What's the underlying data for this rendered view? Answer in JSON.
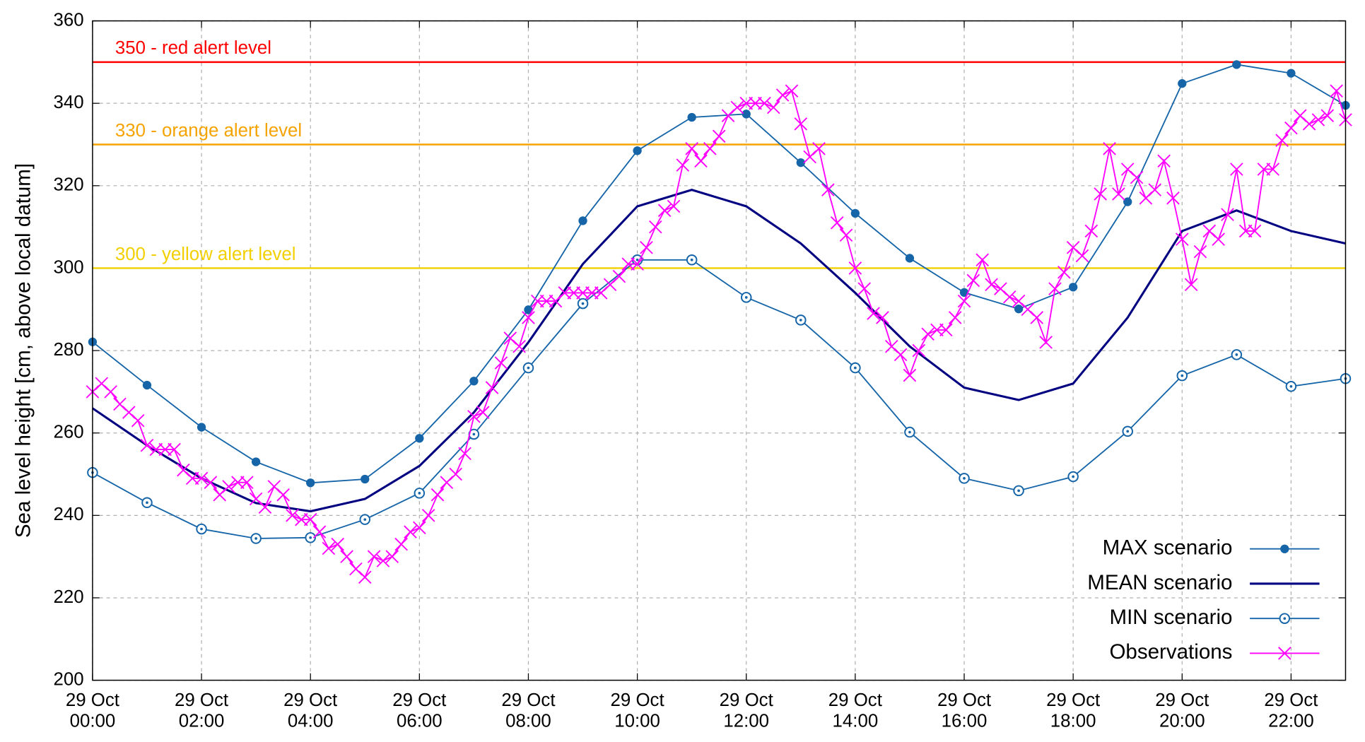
{
  "chart_data": {
    "type": "line",
    "ylabel": "Sea level height [cm, above local datum]",
    "xlim": [
      0,
      1380
    ],
    "ylim": [
      200,
      360
    ],
    "yticks": [
      200,
      220,
      240,
      260,
      280,
      300,
      320,
      340,
      360
    ],
    "xticks": [
      {
        "value": 0,
        "label": [
          "29 Oct",
          "00:00"
        ]
      },
      {
        "value": 120,
        "label": [
          "29 Oct",
          "02:00"
        ]
      },
      {
        "value": 240,
        "label": [
          "29 Oct",
          "04:00"
        ]
      },
      {
        "value": 360,
        "label": [
          "29 Oct",
          "06:00"
        ]
      },
      {
        "value": 480,
        "label": [
          "29 Oct",
          "08:00"
        ]
      },
      {
        "value": 600,
        "label": [
          "29 Oct",
          "10:00"
        ]
      },
      {
        "value": 720,
        "label": [
          "29 Oct",
          "12:00"
        ]
      },
      {
        "value": 840,
        "label": [
          "29 Oct",
          "14:00"
        ]
      },
      {
        "value": 960,
        "label": [
          "29 Oct",
          "16:00"
        ]
      },
      {
        "value": 1080,
        "label": [
          "29 Oct",
          "18:00"
        ]
      },
      {
        "value": 1200,
        "label": [
          "29 Oct",
          "20:00"
        ]
      },
      {
        "value": 1320,
        "label": [
          "29 Oct",
          "22:00"
        ]
      }
    ],
    "grid": true,
    "legend": "lower right",
    "thresholds": [
      {
        "value": 350,
        "label": "350 -  red alert level",
        "color": "#ff0000"
      },
      {
        "value": 330,
        "label": "330 - orange alert level",
        "color": "#f5a300"
      },
      {
        "value": 300,
        "label": "300 - yellow alert level",
        "color": "#f2d000"
      }
    ],
    "series": [
      {
        "name": "MAX scenario",
        "color": "#1565a8",
        "marker": "dot",
        "x": [
          0,
          60,
          120,
          180,
          240,
          300,
          360,
          420,
          480,
          540,
          600,
          660,
          720,
          780,
          840,
          900,
          960,
          1020,
          1080,
          1140,
          1200,
          1260,
          1320,
          1380
        ],
        "values": [
          282.1,
          271.6,
          261.4,
          253.0,
          247.9,
          248.8,
          258.7,
          272.6,
          289.9,
          311.5,
          328.5,
          336.6,
          337.4,
          325.6,
          313.3,
          302.4,
          294.1,
          290.1,
          295.4,
          316.1,
          344.8,
          349.4,
          347.3,
          339.5
        ]
      },
      {
        "name": "MEAN scenario",
        "color": "#000080",
        "marker": "none",
        "x": [
          0,
          60,
          120,
          180,
          240,
          300,
          360,
          420,
          480,
          540,
          600,
          660,
          720,
          780,
          840,
          900,
          960,
          1020,
          1080,
          1140,
          1200,
          1260,
          1320,
          1380
        ],
        "values": [
          266,
          257,
          249,
          243,
          241,
          244,
          252,
          265,
          282,
          301,
          315,
          319,
          315,
          306,
          294,
          281,
          271,
          268,
          272,
          288,
          309,
          314,
          309,
          306
        ]
      },
      {
        "name": "MIN scenario",
        "color": "#1565a8",
        "marker": "circle",
        "x": [
          0,
          60,
          120,
          180,
          240,
          300,
          360,
          420,
          480,
          540,
          600,
          660,
          720,
          780,
          840,
          900,
          960,
          1020,
          1080,
          1140,
          1200,
          1260,
          1320,
          1380
        ],
        "values": [
          250.4,
          243.1,
          236.7,
          234.4,
          234.6,
          239.0,
          245.4,
          259.7,
          275.8,
          291.4,
          302.0,
          302.0,
          292.9,
          287.4,
          275.8,
          260.2,
          249.0,
          246.0,
          249.4,
          260.4,
          273.9,
          279.0,
          271.3,
          273.2
        ]
      },
      {
        "name": "Observations",
        "color": "#ff00ff",
        "marker": "cross",
        "x": [
          0,
          10,
          20,
          30,
          40,
          50,
          60,
          70,
          80,
          90,
          100,
          110,
          120,
          130,
          140,
          150,
          160,
          170,
          180,
          190,
          200,
          210,
          220,
          230,
          240,
          250,
          260,
          270,
          280,
          290,
          300,
          310,
          320,
          330,
          340,
          350,
          360,
          370,
          380,
          390,
          400,
          410,
          420,
          430,
          440,
          450,
          460,
          470,
          480,
          490,
          500,
          510,
          520,
          530,
          540,
          550,
          560,
          570,
          580,
          590,
          600,
          610,
          620,
          630,
          640,
          650,
          660,
          670,
          680,
          690,
          700,
          710,
          720,
          730,
          740,
          750,
          760,
          770,
          780,
          790,
          800,
          810,
          820,
          830,
          840,
          850,
          860,
          870,
          880,
          890,
          900,
          910,
          920,
          930,
          940,
          950,
          960,
          970,
          980,
          990,
          1000,
          1010,
          1020,
          1030,
          1040,
          1050,
          1060,
          1070,
          1080,
          1090,
          1100,
          1110,
          1120,
          1130,
          1140,
          1150,
          1160,
          1170,
          1180,
          1190,
          1200,
          1210,
          1220,
          1230,
          1240,
          1250,
          1260,
          1270,
          1280,
          1290,
          1300,
          1310,
          1320,
          1330,
          1340,
          1350,
          1360,
          1370,
          1380
        ],
        "values": [
          270,
          272,
          270,
          267,
          265,
          263,
          257,
          256,
          256,
          256,
          251,
          249,
          249,
          248,
          245,
          247,
          248,
          248,
          244,
          242,
          247,
          245,
          240,
          239,
          239,
          236,
          232,
          233,
          230,
          227,
          225,
          230,
          229,
          230,
          233,
          236,
          237,
          240,
          245,
          248,
          250,
          255,
          264,
          265,
          271,
          277,
          283,
          281,
          288,
          292,
          292,
          292,
          294,
          294,
          294,
          294,
          294,
          296,
          298,
          301,
          301,
          305,
          310,
          314,
          315,
          325,
          329,
          326,
          329,
          332,
          337,
          339,
          340,
          340,
          340,
          339,
          342,
          343,
          335,
          327,
          329,
          319,
          311,
          308,
          300,
          295,
          289,
          288,
          281,
          279,
          274,
          280,
          284,
          285,
          285,
          288,
          292,
          297,
          302,
          296,
          295,
          293,
          292,
          290,
          288,
          282,
          295,
          299,
          305,
          303,
          309,
          318,
          329,
          318,
          324,
          322,
          317,
          319,
          326,
          317,
          307,
          296,
          304,
          309,
          307,
          313,
          324,
          309,
          309,
          324,
          324,
          331,
          334,
          337,
          335,
          336,
          337,
          343,
          336
        ]
      }
    ]
  }
}
